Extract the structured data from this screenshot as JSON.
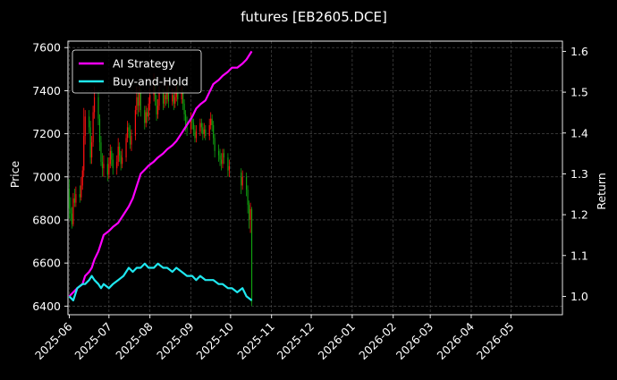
{
  "chart_data": {
    "type": "line",
    "title": "futures [EB2605.DCE]",
    "xlabel": "",
    "ylabel": "Price",
    "y2label": "Return",
    "ylim": [
      6360,
      7630
    ],
    "y2lim": [
      0.955,
      1.625
    ],
    "xlim": [
      "2025-05-31",
      "2026-06-09"
    ],
    "x_ticks": [
      "2025-06",
      "2025-07",
      "2025-08",
      "2025-09",
      "2025-10",
      "2025-11",
      "2025-12",
      "2026-01",
      "2026-02",
      "2026-03",
      "2026-04",
      "2026-05"
    ],
    "y_ticks": [
      6400,
      6600,
      6800,
      7000,
      7200,
      7400,
      7600
    ],
    "y2_ticks": [
      1.0,
      1.1,
      1.2,
      1.3,
      1.4,
      1.5,
      1.6
    ],
    "grid": true,
    "legend_position": "top-left",
    "candles": [
      [
        "2025-06-01",
        6945,
        6855,
        6990,
        6805
      ],
      [
        "2025-06-02",
        6855,
        6830,
        6905,
        6795
      ],
      [
        "2025-06-03",
        6830,
        6780,
        6860,
        6760
      ],
      [
        "2025-06-04",
        6780,
        6900,
        6925,
        6770
      ],
      [
        "2025-06-05",
        6900,
        6880,
        6945,
        6860
      ],
      [
        "2025-06-06",
        6880,
        6920,
        6955,
        6860
      ],
      [
        "2025-06-09",
        6920,
        6905,
        6960,
        6880
      ],
      [
        "2025-06-10",
        6905,
        6960,
        7000,
        6890
      ],
      [
        "2025-06-11",
        6960,
        7030,
        7050,
        6940
      ],
      [
        "2025-06-12",
        7030,
        7190,
        7320,
        7000
      ],
      [
        "2025-06-13",
        7190,
        7280,
        7310,
        7150
      ],
      [
        "2025-06-16",
        7280,
        7230,
        7310,
        7200
      ],
      [
        "2025-06-17",
        7230,
        7090,
        7260,
        7060
      ],
      [
        "2025-06-18",
        7090,
        7160,
        7190,
        7060
      ],
      [
        "2025-06-19",
        7160,
        7300,
        7330,
        7140
      ],
      [
        "2025-06-20",
        7300,
        7370,
        7420,
        7270
      ],
      [
        "2025-06-23",
        7370,
        7270,
        7400,
        7240
      ],
      [
        "2025-06-24",
        7270,
        7160,
        7290,
        7120
      ],
      [
        "2025-06-25",
        7160,
        7070,
        7190,
        7050
      ],
      [
        "2025-06-26",
        7070,
        7040,
        7110,
        7000
      ],
      [
        "2025-06-27",
        7040,
        7060,
        7100,
        7000
      ],
      [
        "2025-06-30",
        7060,
        7010,
        7090,
        6980
      ],
      [
        "2025-07-01",
        7010,
        7060,
        7090,
        6990
      ],
      [
        "2025-07-02",
        7060,
        7120,
        7150,
        7040
      ],
      [
        "2025-07-03",
        7120,
        7080,
        7140,
        7050
      ],
      [
        "2025-07-04",
        7080,
        7040,
        7110,
        7010
      ],
      [
        "2025-07-07",
        7040,
        7070,
        7100,
        7010
      ],
      [
        "2025-07-08",
        7070,
        7140,
        7180,
        7050
      ],
      [
        "2025-07-09",
        7140,
        7100,
        7160,
        7070
      ],
      [
        "2025-07-10",
        7100,
        7060,
        7120,
        7030
      ],
      [
        "2025-07-11",
        7060,
        7090,
        7130,
        7040
      ],
      [
        "2025-07-14",
        7090,
        7180,
        7200,
        7070
      ],
      [
        "2025-07-15",
        7180,
        7230,
        7260,
        7160
      ],
      [
        "2025-07-16",
        7230,
        7210,
        7250,
        7180
      ],
      [
        "2025-07-17",
        7210,
        7150,
        7240,
        7130
      ],
      [
        "2025-07-18",
        7150,
        7190,
        7220,
        7120
      ],
      [
        "2025-07-21",
        7190,
        7310,
        7330,
        7170
      ],
      [
        "2025-07-22",
        7310,
        7370,
        7420,
        7290
      ],
      [
        "2025-07-23",
        7370,
        7330,
        7390,
        7280
      ],
      [
        "2025-07-24",
        7330,
        7390,
        7420,
        7300
      ],
      [
        "2025-07-25",
        7390,
        7310,
        7410,
        7280
      ],
      [
        "2025-07-28",
        7310,
        7250,
        7330,
        7220
      ],
      [
        "2025-07-29",
        7250,
        7300,
        7330,
        7230
      ],
      [
        "2025-07-30",
        7300,
        7280,
        7320,
        7250
      ],
      [
        "2025-07-31",
        7280,
        7340,
        7370,
        7260
      ],
      [
        "2025-08-01",
        7340,
        7380,
        7410,
        7310
      ],
      [
        "2025-08-04",
        7380,
        7430,
        7480,
        7350
      ],
      [
        "2025-08-05",
        7430,
        7360,
        7460,
        7330
      ],
      [
        "2025-08-06",
        7360,
        7290,
        7380,
        7260
      ],
      [
        "2025-08-07",
        7290,
        7330,
        7360,
        7270
      ],
      [
        "2025-08-08",
        7330,
        7390,
        7420,
        7310
      ],
      [
        "2025-08-11",
        7390,
        7340,
        7410,
        7310
      ],
      [
        "2025-08-12",
        7340,
        7380,
        7400,
        7320
      ],
      [
        "2025-08-13",
        7380,
        7360,
        7400,
        7330
      ],
      [
        "2025-08-14",
        7360,
        7400,
        7430,
        7340
      ],
      [
        "2025-08-15",
        7400,
        7350,
        7420,
        7320
      ],
      [
        "2025-08-18",
        7350,
        7380,
        7410,
        7330
      ],
      [
        "2025-08-19",
        7380,
        7340,
        7400,
        7310
      ],
      [
        "2025-08-20",
        7340,
        7370,
        7400,
        7320
      ],
      [
        "2025-08-21",
        7370,
        7420,
        7440,
        7350
      ],
      [
        "2025-08-22",
        7420,
        7360,
        7440,
        7330
      ],
      [
        "2025-08-25",
        7360,
        7390,
        7420,
        7340
      ],
      [
        "2025-08-26",
        7390,
        7340,
        7410,
        7310
      ],
      [
        "2025-08-27",
        7340,
        7290,
        7360,
        7260
      ],
      [
        "2025-08-28",
        7290,
        7240,
        7310,
        7210
      ],
      [
        "2025-08-29",
        7240,
        7220,
        7280,
        7190
      ],
      [
        "2025-09-01",
        7220,
        7270,
        7300,
        7200
      ],
      [
        "2025-09-02",
        7270,
        7250,
        7290,
        7220
      ],
      [
        "2025-09-03",
        7250,
        7220,
        7270,
        7190
      ],
      [
        "2025-09-04",
        7220,
        7180,
        7240,
        7160
      ],
      [
        "2025-09-05",
        7180,
        7210,
        7240,
        7160
      ],
      [
        "2025-09-08",
        7210,
        7250,
        7270,
        7190
      ],
      [
        "2025-09-09",
        7250,
        7230,
        7270,
        7200
      ],
      [
        "2025-09-10",
        7230,
        7200,
        7250,
        7170
      ],
      [
        "2025-09-11",
        7200,
        7220,
        7250,
        7180
      ],
      [
        "2025-09-12",
        7220,
        7190,
        7240,
        7170
      ],
      [
        "2025-09-15",
        7190,
        7240,
        7270,
        7170
      ],
      [
        "2025-09-16",
        7240,
        7270,
        7300,
        7220
      ],
      [
        "2025-09-17",
        7270,
        7240,
        7290,
        7210
      ],
      [
        "2025-09-18",
        7240,
        7180,
        7260,
        7150
      ],
      [
        "2025-09-19",
        7180,
        7120,
        7200,
        7090
      ],
      [
        "2025-09-22",
        7120,
        7100,
        7150,
        7070
      ],
      [
        "2025-09-23",
        7100,
        7080,
        7130,
        7050
      ],
      [
        "2025-09-24",
        7080,
        7060,
        7110,
        7030
      ],
      [
        "2025-09-25",
        7060,
        7110,
        7130,
        7040
      ],
      [
        "2025-09-26",
        7110,
        7090,
        7130,
        7060
      ],
      [
        "2025-09-29",
        7090,
        7030,
        7110,
        7000
      ],
      [
        "2025-09-30",
        7030,
        7050,
        7080,
        7000
      ],
      [
        "2025-10-09",
        7020,
        6960,
        7040,
        6920
      ],
      [
        "2025-10-10",
        6960,
        7000,
        7030,
        6940
      ],
      [
        "2025-10-13",
        7000,
        6940,
        7020,
        6910
      ],
      [
        "2025-10-14",
        6940,
        6870,
        6960,
        6830
      ],
      [
        "2025-10-15",
        6870,
        6800,
        6890,
        6760
      ],
      [
        "2025-10-16",
        6800,
        6850,
        6880,
        6740
      ],
      [
        "2025-10-17",
        6850,
        6420,
        6860,
        6400
      ]
    ],
    "series": [
      {
        "name": "AI Strategy",
        "axis": "right",
        "color": "#ff00ff",
        "x": [
          "2025-06-01",
          "2025-06-04",
          "2025-06-07",
          "2025-06-11",
          "2025-06-13",
          "2025-06-16",
          "2025-06-18",
          "2025-06-20",
          "2025-06-23",
          "2025-06-25",
          "2025-06-27",
          "2025-07-01",
          "2025-07-04",
          "2025-07-08",
          "2025-07-12",
          "2025-07-16",
          "2025-07-19",
          "2025-07-22",
          "2025-07-25",
          "2025-07-28",
          "2025-07-31",
          "2025-08-04",
          "2025-08-07",
          "2025-08-11",
          "2025-08-14",
          "2025-08-18",
          "2025-08-21",
          "2025-08-25",
          "2025-08-29",
          "2025-09-02",
          "2025-09-05",
          "2025-09-08",
          "2025-09-12",
          "2025-09-15",
          "2025-09-18",
          "2025-09-22",
          "2025-09-25",
          "2025-09-29",
          "2025-10-02",
          "2025-10-06",
          "2025-10-10",
          "2025-10-13",
          "2025-10-17"
        ],
        "values": [
          1.0,
          1.01,
          1.02,
          1.03,
          1.05,
          1.06,
          1.07,
          1.09,
          1.11,
          1.13,
          1.15,
          1.16,
          1.17,
          1.18,
          1.2,
          1.22,
          1.24,
          1.27,
          1.3,
          1.31,
          1.32,
          1.33,
          1.34,
          1.35,
          1.36,
          1.37,
          1.38,
          1.4,
          1.42,
          1.44,
          1.46,
          1.47,
          1.48,
          1.5,
          1.52,
          1.53,
          1.54,
          1.55,
          1.56,
          1.56,
          1.57,
          1.58,
          1.6
        ]
      },
      {
        "name": "Buy-and-Hold",
        "axis": "right",
        "color": "#1fe8f0",
        "x": [
          "2025-06-01",
          "2025-06-04",
          "2025-06-07",
          "2025-06-11",
          "2025-06-13",
          "2025-06-16",
          "2025-06-18",
          "2025-06-20",
          "2025-06-23",
          "2025-06-25",
          "2025-06-27",
          "2025-07-01",
          "2025-07-04",
          "2025-07-08",
          "2025-07-12",
          "2025-07-16",
          "2025-07-19",
          "2025-07-22",
          "2025-07-25",
          "2025-07-28",
          "2025-07-31",
          "2025-08-04",
          "2025-08-07",
          "2025-08-11",
          "2025-08-14",
          "2025-08-18",
          "2025-08-21",
          "2025-08-25",
          "2025-08-29",
          "2025-09-02",
          "2025-09-05",
          "2025-09-08",
          "2025-09-12",
          "2025-09-15",
          "2025-09-18",
          "2025-09-22",
          "2025-09-25",
          "2025-09-29",
          "2025-10-02",
          "2025-10-06",
          "2025-10-10",
          "2025-10-13",
          "2025-10-17"
        ],
        "values": [
          1.0,
          0.99,
          1.02,
          1.03,
          1.03,
          1.04,
          1.05,
          1.04,
          1.03,
          1.02,
          1.03,
          1.02,
          1.03,
          1.04,
          1.05,
          1.07,
          1.06,
          1.07,
          1.07,
          1.08,
          1.07,
          1.07,
          1.08,
          1.07,
          1.07,
          1.06,
          1.07,
          1.06,
          1.05,
          1.05,
          1.04,
          1.05,
          1.04,
          1.04,
          1.04,
          1.03,
          1.03,
          1.02,
          1.02,
          1.01,
          1.02,
          1.0,
          0.99
        ]
      }
    ]
  }
}
